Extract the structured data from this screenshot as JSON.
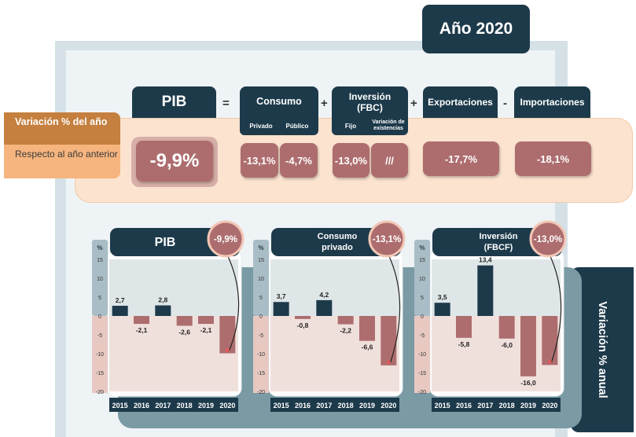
{
  "year_title": "Año 2020",
  "side_label": {
    "title": "Variación % del año",
    "subtitle": "Respecto al año anterior"
  },
  "summary": {
    "pib": {
      "label": "PIB",
      "value": "-9,9%"
    },
    "ops": [
      "=",
      "+",
      "+",
      "-"
    ],
    "consumo": {
      "label": "Consumo",
      "sub": [
        "Privado",
        "Público"
      ],
      "values": [
        "-13,1%",
        "-4,7%"
      ]
    },
    "inversion": {
      "label": "Inversión (FBC)",
      "sub": [
        "Fijo",
        "Variación de existencias"
      ],
      "values": [
        "-13,0%",
        "///"
      ]
    },
    "exportaciones": {
      "label": "Exportaciones",
      "value": "-17,7%"
    },
    "importaciones": {
      "label": "Importaciones",
      "value": "-18,1%"
    }
  },
  "annual_label": "Variación % anual",
  "chart_data": [
    {
      "type": "bar",
      "title": "PIB",
      "badge": "-9,9%",
      "ylabel": "%",
      "categories": [
        "2015",
        "2016",
        "2017",
        "2018",
        "2019",
        "2020"
      ],
      "values": [
        2.7,
        -2.1,
        2.8,
        -2.6,
        -2.1,
        -9.9
      ],
      "labels": [
        "2,7",
        "-2,1",
        "2,8",
        "-2,6",
        "-2,1",
        ""
      ],
      "yticks": [
        "15",
        "10",
        "5",
        "0",
        "-5",
        "-10",
        "-15",
        "-20"
      ],
      "ylim": [
        -20,
        15
      ]
    },
    {
      "type": "bar",
      "title": "Consumo privado",
      "badge": "-13,1%",
      "ylabel": "%",
      "categories": [
        "2015",
        "2016",
        "2017",
        "2018",
        "2019",
        "2020"
      ],
      "values": [
        3.7,
        -0.8,
        4.2,
        -2.2,
        -6.6,
        -13.1
      ],
      "labels": [
        "3,7",
        "-0,8",
        "4,2",
        "-2,2",
        "-6,6",
        ""
      ],
      "yticks": [
        "15",
        "10",
        "5",
        "0",
        "-5",
        "-10",
        "-15",
        "-20"
      ],
      "ylim": [
        -20,
        15
      ]
    },
    {
      "type": "bar",
      "title": "Inversión (FBCF)",
      "badge": "-13,0%",
      "ylabel": "%",
      "categories": [
        "2015",
        "2016",
        "2017",
        "2018",
        "2019",
        "2020"
      ],
      "values": [
        3.5,
        -5.8,
        13.4,
        -6.0,
        -16.0,
        -13.0
      ],
      "labels": [
        "3,5",
        "-5,8",
        "13,4",
        "-6,0",
        "-16,0",
        ""
      ],
      "yticks": [
        "15",
        "10",
        "5",
        "0",
        "-5",
        "-10",
        "-15",
        "-20"
      ],
      "ylim": [
        -20,
        15
      ]
    }
  ],
  "colors": {
    "navy": "#1d3a4b",
    "rose": "#ad6d6e",
    "teal": "#7a9aa4",
    "pos_bg": "#dfe6e8",
    "neg_bg": "#f0e0dc"
  }
}
